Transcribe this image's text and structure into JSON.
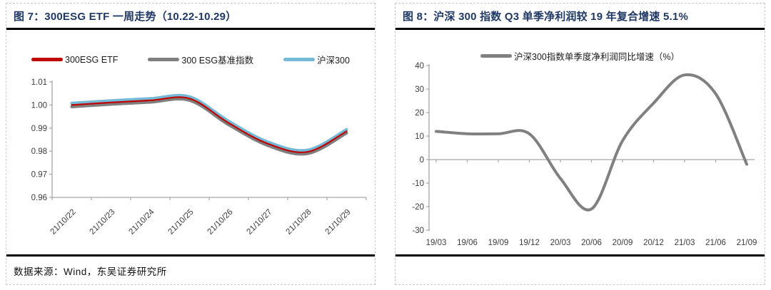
{
  "figures": [
    {
      "title": "图 7：300ESG ETF 一周走势（10.22-10.29）",
      "source": "数据来源：Wind，东吴证券研究所"
    },
    {
      "title": "图 8：沪深 300 指数 Q3 单季净利润较 19 年复合增速 5.1%",
      "source": ""
    }
  ],
  "colors": {
    "title_navy": "#1F3864",
    "axis_gray": "#A6A6A6",
    "tick_text": "#3b3b3b",
    "divider_black": "#000000",
    "border_dash_gray": "#C9C9C9",
    "etf_red": "#C00000",
    "benchmark_gray": "#7F7F7F",
    "hs300_blue": "#74B9D6",
    "profit_line_gray": "#808080"
  },
  "chart_data": [
    {
      "type": "line",
      "title": "300ESG ETF 一周走势（10.22-10.29）",
      "categories": [
        "21/10/22",
        "21/10/23",
        "21/10/24",
        "21/10/25",
        "21/10/26",
        "21/10/27",
        "21/10/28",
        "21/10/29"
      ],
      "series": [
        {
          "name": "300ESG ETF",
          "color": "#C00000",
          "values": [
            1.0,
            1.0011,
            1.002,
            1.0028,
            0.9922,
            0.9832,
            0.9797,
            0.9886
          ]
        },
        {
          "name": "300 ESG基准指数",
          "color": "#7F7F7F",
          "values": [
            0.9992,
            1.0003,
            1.0012,
            1.002,
            0.9914,
            0.9824,
            0.9789,
            0.9878
          ]
        },
        {
          "name": "沪深300",
          "color": "#74B9D6",
          "values": [
            1.0008,
            1.0019,
            1.0028,
            1.0036,
            0.993,
            0.984,
            0.9805,
            0.9894
          ]
        }
      ],
      "ylim": [
        0.96,
        1.01
      ],
      "ytick_step": 0.01,
      "ytick_labels": [
        "1.01",
        "1.00",
        "0.99",
        "0.98",
        "0.97",
        "0.96"
      ],
      "grid": false,
      "legend_position": "top",
      "smooth": true
    },
    {
      "type": "line",
      "title": "沪深300指数单季度净利润同比增速（%）",
      "categories": [
        "19/03",
        "19/06",
        "19/09",
        "19/12",
        "20/03",
        "20/06",
        "20/09",
        "20/12",
        "21/03",
        "21/06",
        "21/09"
      ],
      "series": [
        {
          "name": "沪深300指数单季度净利润同比增速（%）",
          "color": "#808080",
          "values": [
            12,
            11,
            11,
            11,
            -8,
            -21,
            8,
            24,
            36,
            28,
            -2
          ]
        }
      ],
      "ylim": [
        -30,
        40
      ],
      "ytick_step": 10,
      "ytick_labels": [
        "40",
        "30",
        "20",
        "10",
        "0",
        "-10",
        "-20",
        "-30"
      ],
      "zero_axis": true,
      "grid": false,
      "legend_position": "top",
      "smooth": true
    }
  ]
}
